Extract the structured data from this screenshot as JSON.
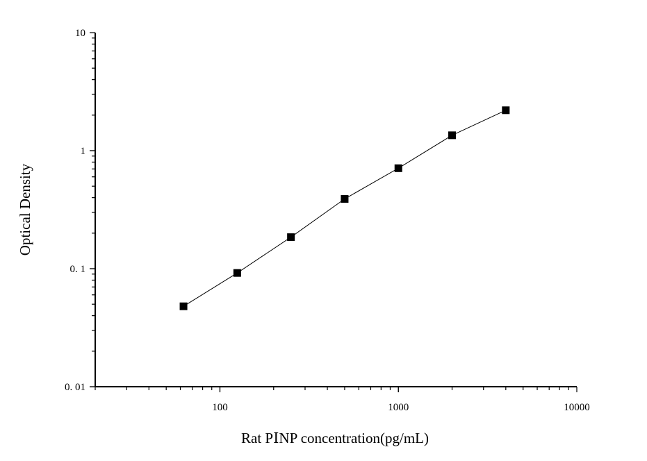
{
  "chart_data": {
    "type": "line",
    "title": "",
    "xlabel": "Rat PⅠNP concentration(pg/mL)",
    "ylabel": "Optical Density",
    "x_scale": "log",
    "y_scale": "log",
    "xlim": [
      20,
      10000
    ],
    "ylim": [
      0.01,
      10
    ],
    "x_ticks": [
      {
        "value": 100,
        "label": "100"
      },
      {
        "value": 1000,
        "label": "1000"
      },
      {
        "value": 10000,
        "label": "10000"
      }
    ],
    "y_ticks": [
      {
        "value": 0.01,
        "label": "0. 01"
      },
      {
        "value": 0.1,
        "label": "0. 1"
      },
      {
        "value": 1,
        "label": "1"
      },
      {
        "value": 10,
        "label": "10"
      }
    ],
    "grid": false,
    "legend": "none",
    "marker": "square",
    "series": [
      {
        "x": [
          62.5,
          125,
          250,
          500,
          1000,
          2000,
          4000
        ],
        "y": [
          0.048,
          0.092,
          0.185,
          0.39,
          0.71,
          1.35,
          2.2
        ]
      }
    ],
    "colors": {
      "marker": "#000000",
      "line": "#000000",
      "axis": "#000000"
    }
  }
}
